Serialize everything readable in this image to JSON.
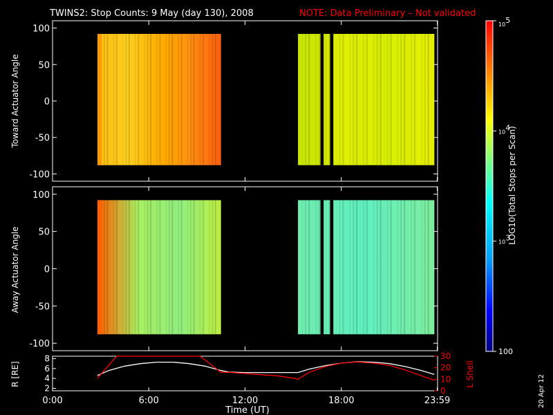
{
  "header": {
    "title": "TWINS2: Stop Counts:  9 May (day 130), 2008",
    "note": "NOTE: Data Preliminary – Not validated"
  },
  "side_stamp": "20 Apr 12",
  "colorbar": {
    "label": "LOG10(Total Stops per Scan)",
    "tick_labels": [
      "10^5",
      "10^4",
      "10^3",
      "100"
    ],
    "tick_values": [
      100000,
      10000,
      1000,
      100
    ],
    "scale": "log",
    "range": [
      100,
      100000
    ],
    "colormap": [
      "#000080",
      "#0000ff",
      "#00a0ff",
      "#00ffff",
      "#80ff80",
      "#ffff00",
      "#ff8000",
      "#ff0000"
    ]
  },
  "chart_data": [
    {
      "type": "heatmap",
      "panel": "toward",
      "ylabel": "Toward Actuator Angle",
      "xlim": [
        0,
        24
      ],
      "ylim": [
        -110,
        110
      ],
      "yticks": [
        100,
        50,
        0,
        -50,
        -100
      ],
      "data_blocks": [
        {
          "x_start": 2.8,
          "x_end": 10.5,
          "y_range": [
            -88,
            92
          ],
          "typical_level": "~1.5e4-3e4",
          "colors_left_to_right": [
            "#ffc010",
            "#ffd020",
            "#ffb000",
            "#ff9010",
            "#ff6010"
          ]
        },
        {
          "x_start": 15.3,
          "x_end": 23.8,
          "y_range": [
            -88,
            92
          ],
          "typical_level": "~8e3-1e4",
          "colors_left_to_right": [
            "#c8e800",
            "#e0f000",
            "#d8f000",
            "#e8f000"
          ]
        }
      ],
      "gaps": [
        [
          16.7,
          16.9
        ],
        [
          17.3,
          17.5
        ]
      ]
    },
    {
      "type": "heatmap",
      "panel": "away",
      "ylabel": "Away Actuator Angle",
      "xlim": [
        0,
        24
      ],
      "ylim": [
        -110,
        110
      ],
      "yticks": [
        100,
        50,
        0,
        -50,
        -100
      ],
      "data_blocks": [
        {
          "x_start": 2.8,
          "x_end": 10.5,
          "y_range": [
            -88,
            92
          ],
          "typical_level": "~3e3-8e3",
          "colors_left_to_right": [
            "#ff6000",
            "#a8f060",
            "#90f080",
            "#c0f040"
          ]
        },
        {
          "x_start": 15.3,
          "x_end": 23.8,
          "y_range": [
            -88,
            92
          ],
          "typical_level": "~2e3-3e3",
          "colors_left_to_right": [
            "#70f0b0",
            "#60f0c0",
            "#80f0a0"
          ]
        }
      ],
      "gaps": [
        [
          16.7,
          16.9
        ],
        [
          17.3,
          17.5
        ]
      ]
    },
    {
      "type": "line",
      "panel": "orbit",
      "ylabel_left": "R [RE]",
      "ylabel_right": "L Shell",
      "xlabel": "Time (UT)",
      "xlim": [
        0,
        24
      ],
      "x_tick_values": [
        0,
        6,
        12,
        18,
        23.98
      ],
      "x_tick_labels": [
        "0:00",
        "6:00",
        "12:00",
        "18:00",
        "23:59"
      ],
      "left_axis": {
        "ylim": [
          1.5,
          8.5
        ],
        "ticks": [
          2,
          4,
          6,
          8
        ]
      },
      "right_axis": {
        "ylim": [
          0,
          30
        ],
        "ticks": [
          0,
          10,
          20,
          30
        ],
        "color": "#ff0000"
      },
      "series": [
        {
          "axis": "left",
          "color": "#ffffff",
          "x": [
            2.8,
            3.5,
            4.5,
            5.5,
            6.5,
            7.5,
            8.5,
            9.5,
            10.5,
            11.0,
            12.0,
            13.0,
            14.0,
            15.0,
            15.3,
            16.0,
            17.0,
            18.0,
            19.0,
            20.0,
            21.0,
            22.0,
            23.0,
            23.8
          ],
          "y": [
            4.6,
            5.6,
            6.5,
            7.0,
            7.3,
            7.3,
            7.0,
            6.5,
            5.6,
            5.3,
            5.2,
            5.2,
            5.2,
            5.2,
            5.2,
            5.9,
            6.6,
            7.1,
            7.4,
            7.3,
            7.0,
            6.4,
            5.6,
            4.8
          ]
        },
        {
          "axis": "right",
          "color": "#ff0000",
          "x": [
            2.8,
            3.5,
            4.0,
            8.5,
            9.2,
            10.5,
            11.0,
            12.0,
            13.0,
            14.0,
            15.0,
            15.3,
            16.0,
            17.0,
            18.0,
            19.0,
            20.0,
            21.0,
            22.0,
            23.0,
            23.8
          ],
          "y": [
            11,
            22,
            30,
            30,
            30,
            16,
            16,
            15,
            14,
            13,
            11,
            10,
            16,
            21,
            24,
            25,
            24,
            22,
            18,
            13,
            9
          ]
        }
      ]
    }
  ]
}
